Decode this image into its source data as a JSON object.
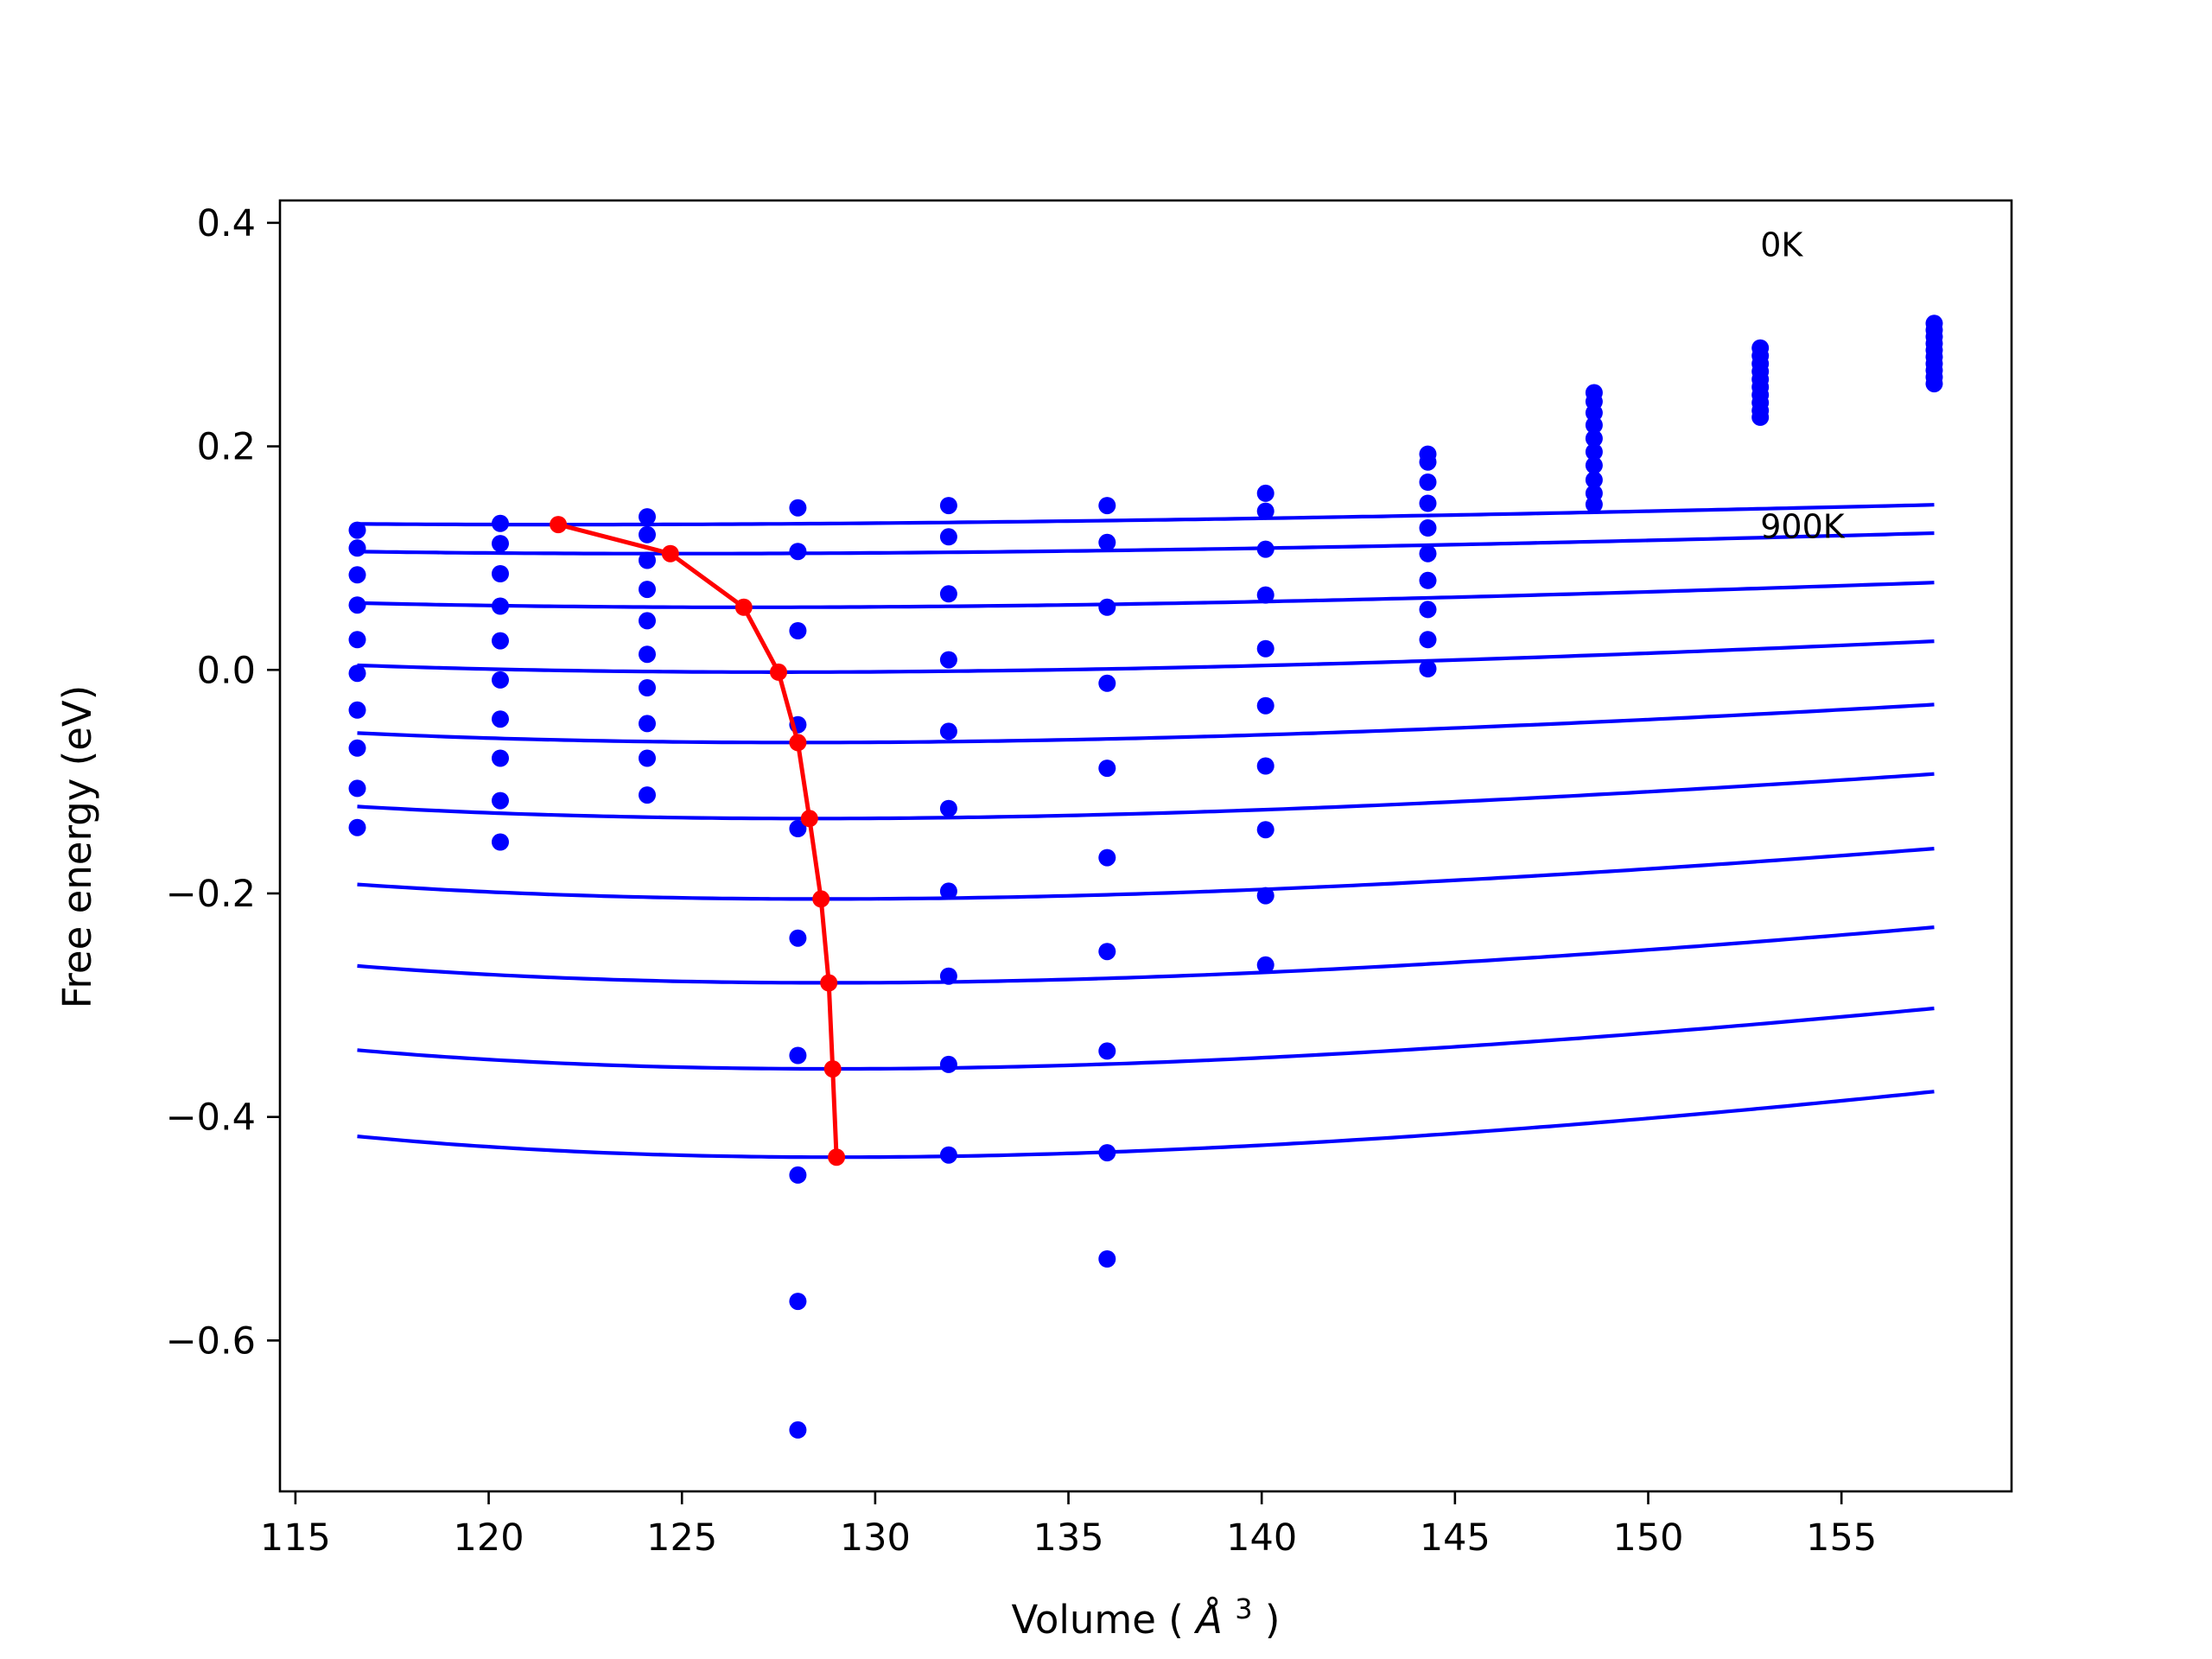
{
  "chart_data": {
    "type": "line",
    "title": "",
    "xlabel_text": "Volume (",
    "xlabel_unit": "Å",
    "xlabel_sup": "3",
    "xlabel_close": ")",
    "ylabel": "Free energy (eV)",
    "xlim": [
      114.6,
      159.4
    ],
    "ylim": [
      -0.735,
      0.42
    ],
    "xticks": [
      {
        "value": 115,
        "label": "115"
      },
      {
        "value": 120,
        "label": "120"
      },
      {
        "value": 125,
        "label": "125"
      },
      {
        "value": 130,
        "label": "130"
      },
      {
        "value": 135,
        "label": "135"
      },
      {
        "value": 140,
        "label": "140"
      },
      {
        "value": 145,
        "label": "145"
      },
      {
        "value": 150,
        "label": "150"
      },
      {
        "value": 155,
        "label": "155"
      }
    ],
    "yticks": [
      {
        "value": 0.4,
        "label": "0.4"
      },
      {
        "value": 0.2,
        "label": "0.2"
      },
      {
        "value": 0.0,
        "label": "0.0"
      },
      {
        "value": -0.2,
        "label": "−0.2"
      },
      {
        "value": -0.4,
        "label": "−0.4"
      },
      {
        "value": -0.6,
        "label": "−0.6"
      }
    ],
    "grid": false,
    "annotations": [
      {
        "text": "0K",
        "x": 152.9,
        "y": 0.37
      },
      {
        "text": "900K",
        "x": 152.9,
        "y": 0.118
      }
    ],
    "fit_color": "#0000ff",
    "data_point_color": "#0000ff",
    "equilibrium_color": "#ff0000",
    "fit_curves": [
      {
        "V0": 121.8,
        "F0": 0.13,
        "B0": 0.0052,
        "B1": 4.2
      },
      {
        "V0": 124.7,
        "F0": 0.104,
        "B0": 0.0063,
        "B1": 4.2
      },
      {
        "V0": 126.6,
        "F0": 0.056,
        "B0": 0.0085,
        "B1": 4.2
      },
      {
        "V0": 127.5,
        "F0": -0.002,
        "B0": 0.0112,
        "B1": 4.2
      },
      {
        "V0": 128.0,
        "F0": -0.065,
        "B0": 0.0142,
        "B1": 4.2
      },
      {
        "V0": 128.3,
        "F0": -0.133,
        "B0": 0.017,
        "B1": 4.2
      },
      {
        "V0": 128.6,
        "F0": -0.205,
        "B0": 0.0196,
        "B1": 4.2
      },
      {
        "V0": 128.8,
        "F0": -0.28,
        "B0": 0.0219,
        "B1": 4.2
      },
      {
        "V0": 128.9,
        "F0": -0.357,
        "B0": 0.024,
        "B1": 4.2
      },
      {
        "V0": 129.0,
        "F0": -0.436,
        "B0": 0.0262,
        "B1": 4.2
      }
    ],
    "curve_x_range": [
      116.6,
      157.4
    ],
    "data_points": [
      {
        "x": 116.6,
        "y": 0.125
      },
      {
        "x": 116.6,
        "y": 0.109
      },
      {
        "x": 116.6,
        "y": 0.085
      },
      {
        "x": 116.6,
        "y": 0.058
      },
      {
        "x": 116.6,
        "y": 0.027
      },
      {
        "x": 116.6,
        "y": -0.003
      },
      {
        "x": 116.6,
        "y": -0.036
      },
      {
        "x": 116.6,
        "y": -0.07
      },
      {
        "x": 116.6,
        "y": -0.106
      },
      {
        "x": 116.6,
        "y": -0.141
      },
      {
        "x": 120.3,
        "y": 0.131
      },
      {
        "x": 120.3,
        "y": 0.113
      },
      {
        "x": 120.3,
        "y": 0.086
      },
      {
        "x": 120.3,
        "y": 0.057
      },
      {
        "x": 120.3,
        "y": 0.026
      },
      {
        "x": 120.3,
        "y": -0.009
      },
      {
        "x": 120.3,
        "y": -0.044
      },
      {
        "x": 120.3,
        "y": -0.079
      },
      {
        "x": 120.3,
        "y": -0.117
      },
      {
        "x": 120.3,
        "y": -0.154
      },
      {
        "x": 124.1,
        "y": 0.137
      },
      {
        "x": 124.1,
        "y": 0.121
      },
      {
        "x": 124.1,
        "y": 0.098
      },
      {
        "x": 124.1,
        "y": 0.072
      },
      {
        "x": 124.1,
        "y": 0.044
      },
      {
        "x": 124.1,
        "y": 0.014
      },
      {
        "x": 124.1,
        "y": -0.016
      },
      {
        "x": 124.1,
        "y": -0.048
      },
      {
        "x": 124.1,
        "y": -0.079
      },
      {
        "x": 124.1,
        "y": -0.112
      },
      {
        "x": 128.0,
        "y": 0.145
      },
      {
        "x": 128.0,
        "y": 0.106
      },
      {
        "x": 128.0,
        "y": 0.035
      },
      {
        "x": 128.0,
        "y": -0.049
      },
      {
        "x": 128.0,
        "y": -0.142
      },
      {
        "x": 128.0,
        "y": -0.24
      },
      {
        "x": 128.0,
        "y": -0.345
      },
      {
        "x": 128.0,
        "y": -0.452
      },
      {
        "x": 128.0,
        "y": -0.565
      },
      {
        "x": 128.0,
        "y": -0.68
      },
      {
        "x": 131.9,
        "y": 0.147
      },
      {
        "x": 131.9,
        "y": 0.119
      },
      {
        "x": 131.9,
        "y": 0.068
      },
      {
        "x": 131.9,
        "y": 0.009
      },
      {
        "x": 131.9,
        "y": -0.055
      },
      {
        "x": 131.9,
        "y": -0.124
      },
      {
        "x": 131.9,
        "y": -0.198
      },
      {
        "x": 131.9,
        "y": -0.274
      },
      {
        "x": 131.9,
        "y": -0.353
      },
      {
        "x": 131.9,
        "y": -0.434
      },
      {
        "x": 136.0,
        "y": 0.147
      },
      {
        "x": 136.0,
        "y": 0.114
      },
      {
        "x": 136.0,
        "y": 0.056
      },
      {
        "x": 136.0,
        "y": -0.012
      },
      {
        "x": 136.0,
        "y": -0.088
      },
      {
        "x": 136.0,
        "y": -0.168
      },
      {
        "x": 136.0,
        "y": -0.252
      },
      {
        "x": 136.0,
        "y": -0.341
      },
      {
        "x": 136.0,
        "y": -0.432
      },
      {
        "x": 136.0,
        "y": -0.527
      },
      {
        "x": 140.1,
        "y": 0.158
      },
      {
        "x": 140.1,
        "y": 0.142
      },
      {
        "x": 140.1,
        "y": 0.108
      },
      {
        "x": 140.1,
        "y": 0.067
      },
      {
        "x": 140.1,
        "y": 0.019
      },
      {
        "x": 140.1,
        "y": -0.032
      },
      {
        "x": 140.1,
        "y": -0.086
      },
      {
        "x": 140.1,
        "y": -0.143
      },
      {
        "x": 140.1,
        "y": -0.202
      },
      {
        "x": 140.1,
        "y": -0.264
      },
      {
        "x": 144.3,
        "y": 0.193
      },
      {
        "x": 144.3,
        "y": 0.186
      },
      {
        "x": 144.3,
        "y": 0.168
      },
      {
        "x": 144.3,
        "y": 0.149
      },
      {
        "x": 144.3,
        "y": 0.127
      },
      {
        "x": 144.3,
        "y": 0.104
      },
      {
        "x": 144.3,
        "y": 0.08
      },
      {
        "x": 144.3,
        "y": 0.054
      },
      {
        "x": 144.3,
        "y": 0.027
      },
      {
        "x": 144.3,
        "y": 0.001
      },
      {
        "x": 148.6,
        "y": 0.248
      },
      {
        "x": 148.6,
        "y": 0.24
      },
      {
        "x": 148.6,
        "y": 0.23
      },
      {
        "x": 148.6,
        "y": 0.219
      },
      {
        "x": 148.6,
        "y": 0.207
      },
      {
        "x": 148.6,
        "y": 0.195
      },
      {
        "x": 148.6,
        "y": 0.183
      },
      {
        "x": 148.6,
        "y": 0.17
      },
      {
        "x": 148.6,
        "y": 0.158
      },
      {
        "x": 148.6,
        "y": 0.148
      },
      {
        "x": 152.9,
        "y": 0.288
      },
      {
        "x": 152.9,
        "y": 0.281
      },
      {
        "x": 152.9,
        "y": 0.274
      },
      {
        "x": 152.9,
        "y": 0.267
      },
      {
        "x": 152.9,
        "y": 0.26
      },
      {
        "x": 152.9,
        "y": 0.253
      },
      {
        "x": 152.9,
        "y": 0.246
      },
      {
        "x": 152.9,
        "y": 0.239
      },
      {
        "x": 152.9,
        "y": 0.232
      },
      {
        "x": 152.9,
        "y": 0.226
      },
      {
        "x": 157.4,
        "y": 0.31
      },
      {
        "x": 157.4,
        "y": 0.304
      },
      {
        "x": 157.4,
        "y": 0.298
      },
      {
        "x": 157.4,
        "y": 0.292
      },
      {
        "x": 157.4,
        "y": 0.286
      },
      {
        "x": 157.4,
        "y": 0.28
      },
      {
        "x": 157.4,
        "y": 0.274
      },
      {
        "x": 157.4,
        "y": 0.268
      },
      {
        "x": 157.4,
        "y": 0.262
      },
      {
        "x": 157.4,
        "y": 0.256
      }
    ],
    "equilibrium_points": [
      {
        "x": 121.8,
        "y": 0.13
      },
      {
        "x": 124.7,
        "y": 0.104
      },
      {
        "x": 126.6,
        "y": 0.056
      },
      {
        "x": 127.5,
        "y": -0.002
      },
      {
        "x": 128.0,
        "y": -0.065
      },
      {
        "x": 128.3,
        "y": -0.133
      },
      {
        "x": 128.6,
        "y": -0.205
      },
      {
        "x": 128.8,
        "y": -0.28
      },
      {
        "x": 128.9,
        "y": -0.357
      },
      {
        "x": 129.0,
        "y": -0.436
      }
    ]
  }
}
